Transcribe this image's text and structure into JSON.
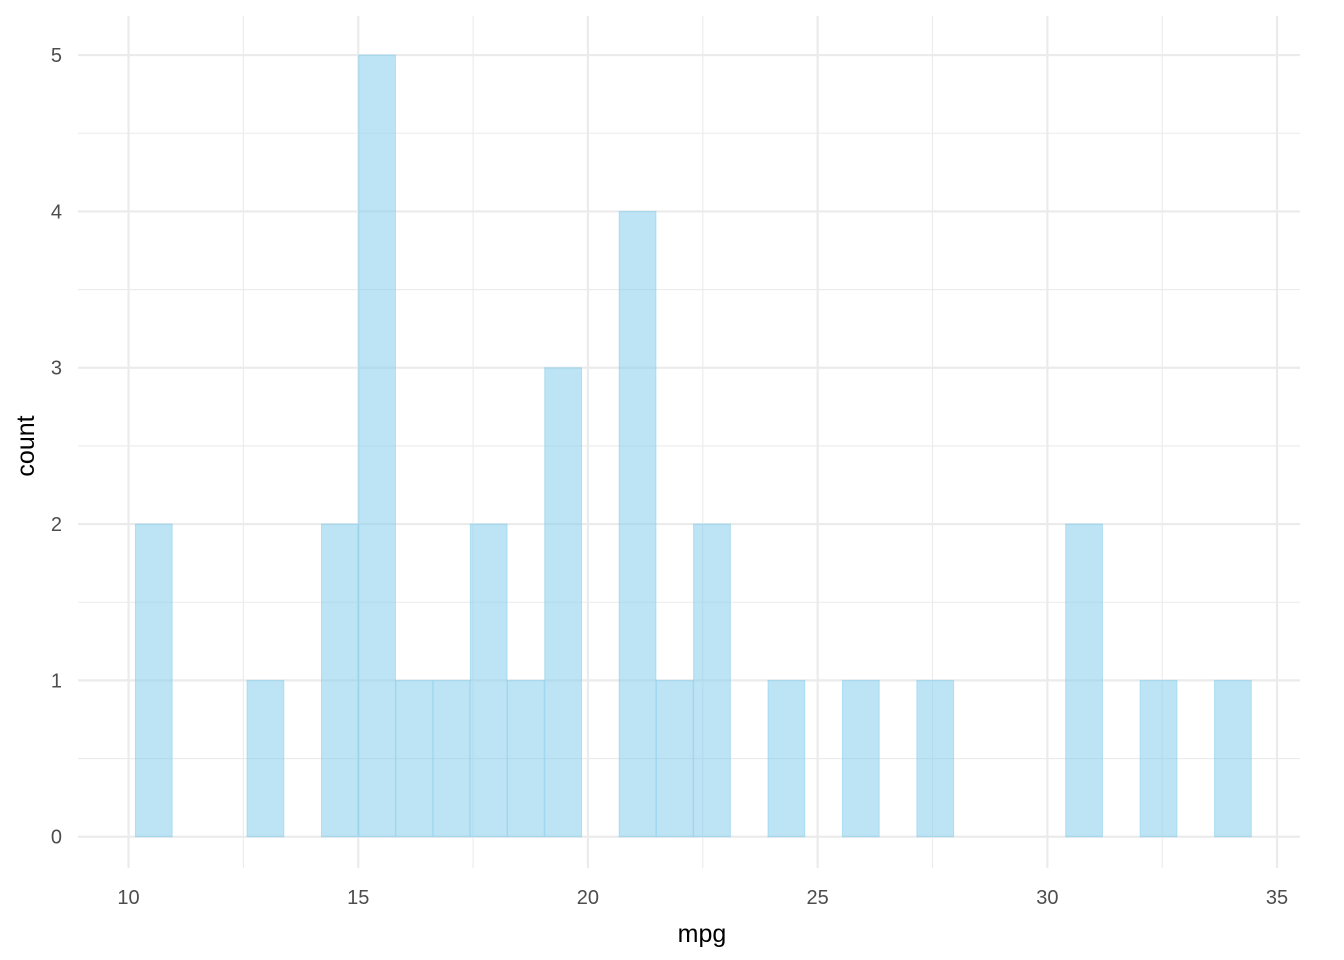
{
  "chart_data": {
    "type": "bar",
    "subtype": "histogram",
    "xlabel": "mpg",
    "ylabel": "count",
    "xlim": [
      8.9,
      35.5
    ],
    "ylim": [
      -0.2,
      5.25
    ],
    "x_ticks": [
      10,
      15,
      20,
      25,
      30,
      35
    ],
    "y_ticks": [
      0,
      1,
      2,
      3,
      4,
      5
    ],
    "bin_width": 0.8,
    "bins": [
      {
        "x": 10.55,
        "count": 2
      },
      {
        "x": 11.36,
        "count": 0
      },
      {
        "x": 12.17,
        "count": 0
      },
      {
        "x": 12.98,
        "count": 1
      },
      {
        "x": 13.79,
        "count": 0
      },
      {
        "x": 14.6,
        "count": 2
      },
      {
        "x": 15.41,
        "count": 5
      },
      {
        "x": 16.22,
        "count": 1
      },
      {
        "x": 17.03,
        "count": 1
      },
      {
        "x": 17.84,
        "count": 2
      },
      {
        "x": 18.65,
        "count": 1
      },
      {
        "x": 19.46,
        "count": 3
      },
      {
        "x": 20.27,
        "count": 0
      },
      {
        "x": 21.08,
        "count": 4
      },
      {
        "x": 21.89,
        "count": 1
      },
      {
        "x": 22.7,
        "count": 2
      },
      {
        "x": 23.51,
        "count": 0
      },
      {
        "x": 24.32,
        "count": 1
      },
      {
        "x": 25.13,
        "count": 0
      },
      {
        "x": 25.94,
        "count": 1
      },
      {
        "x": 26.75,
        "count": 0
      },
      {
        "x": 27.56,
        "count": 1
      },
      {
        "x": 28.37,
        "count": 0
      },
      {
        "x": 29.18,
        "count": 0
      },
      {
        "x": 29.99,
        "count": 0
      },
      {
        "x": 30.8,
        "count": 2
      },
      {
        "x": 31.61,
        "count": 0
      },
      {
        "x": 32.42,
        "count": 1
      },
      {
        "x": 33.23,
        "count": 0
      },
      {
        "x": 34.04,
        "count": 1
      }
    ],
    "grid": true,
    "colors": {
      "bar_fill": "#87ceeb",
      "grid": "#ebebeb"
    }
  }
}
